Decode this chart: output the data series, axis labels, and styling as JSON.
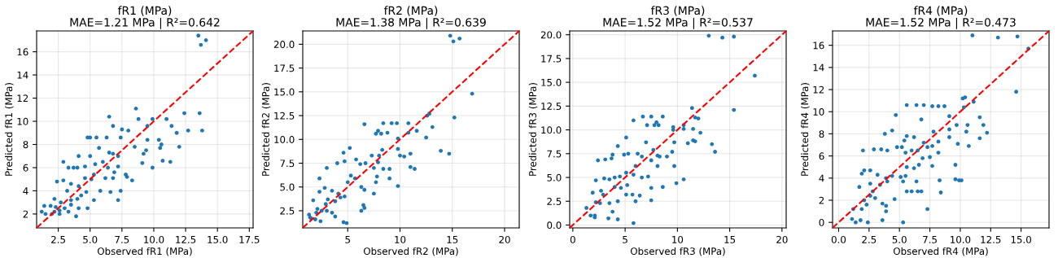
{
  "chart_data": [
    {
      "type": "scatter",
      "title": "fR1 (MPa)",
      "subtitle": "MAE=1.21 MPa | R²=0.642",
      "xlabel": "Observed fR1 (MPa)",
      "ylabel": "Predicted fR1 (MPa)",
      "grid": true,
      "xlim": [
        0.8,
        17.8
      ],
      "ylim": [
        0.8,
        17.8
      ],
      "xticks": [
        2.5,
        {
          "value": 5,
          "label": "5.0"
        },
        7.5,
        {
          "value": 10,
          "label": "10.0"
        },
        12.5,
        {
          "value": 15,
          "label": "15.0"
        },
        17.5
      ],
      "yticks": [
        2,
        4,
        6,
        8,
        10,
        12,
        14,
        16
      ],
      "series": [
        {
          "marker": "circle",
          "color": "#1f77b4",
          "x": [
            13.5,
            13.7,
            14.1,
            8.6,
            6.5,
            8.8,
            9.9,
            11.0,
            12.4,
            13.6,
            12.7,
            13.8,
            11.8,
            11.4,
            9.5,
            6.8,
            7.5,
            8.0,
            4.8,
            5.0,
            5.5,
            6.3,
            7.4,
            9.5,
            10.4,
            10.6,
            12.0,
            10.5,
            9.2,
            9.4,
            8.5,
            6.8,
            7.2,
            6.5,
            4.1,
            5.0,
            5.7,
            10.7,
            11.3,
            9.9,
            9.1,
            7.2,
            6.0,
            3.3,
            3.7,
            4.0,
            2.9,
            4.6,
            5.4,
            6.4,
            6.9,
            7.8,
            7.9,
            5.3,
            6.2,
            6.8,
            5.1,
            4.6,
            2.4,
            2.9,
            3.5,
            4.1,
            8.3,
            6.6,
            5.8,
            4.7,
            3.2,
            7.4,
            7.2,
            5.3,
            3.5,
            4.0,
            4.3,
            2.2,
            3.5,
            2.7,
            1.9,
            2.3,
            3.0,
            2.6,
            3.3,
            4.1,
            4.8,
            3.9,
            1.2,
            1.5,
            2.0,
            2.6,
            1.4,
            2.2
          ],
          "values": [
            17.4,
            16.6,
            17.0,
            11.1,
            10.4,
            10.2,
            10.2,
            10.2,
            10.7,
            10.7,
            9.2,
            9.2,
            9.0,
            9.6,
            9.6,
            9.6,
            9.3,
            9.2,
            8.6,
            8.6,
            8.6,
            8.6,
            8.6,
            8.4,
            8.4,
            8.0,
            7.8,
            7.7,
            7.2,
            7.5,
            7.8,
            7.2,
            7.0,
            7.3,
            7.0,
            7.0,
            7.7,
            6.6,
            6.5,
            6.0,
            6.4,
            6.1,
            6.5,
            6.0,
            6.0,
            6.0,
            6.5,
            6.1,
            6.3,
            6.0,
            5.6,
            5.4,
            5.2,
            5.4,
            5.1,
            5.1,
            5.0,
            5.1,
            4.8,
            4.9,
            4.6,
            4.4,
            4.9,
            3.9,
            4.0,
            3.9,
            4.0,
            4.0,
            3.2,
            3.2,
            3.2,
            3.3,
            3.6,
            3.3,
            2.8,
            3.0,
            2.7,
            2.6,
            2.5,
            2.3,
            2.2,
            2.5,
            2.5,
            1.8,
            2.2,
            2.0,
            2.0,
            2.0,
            2.7,
            2.2
          ]
        },
        {
          "type": "line",
          "line_style": "dashed",
          "color": "#ff0000",
          "x": [
            0.8,
            17.8
          ],
          "values": [
            0.8,
            17.8
          ]
        }
      ]
    },
    {
      "type": "scatter",
      "title": "fR2 (MPa)",
      "subtitle": "MAE=1.38 MPa | R²=0.639",
      "xlabel": "Observed fR2 (MPa)",
      "ylabel": "Predicted fR2 (MPa)",
      "grid": true,
      "xlim": [
        0.7,
        21.4
      ],
      "ylim": [
        0.7,
        21.4
      ],
      "xticks": [
        5,
        10,
        15,
        20
      ],
      "yticks": [
        2.5,
        {
          "value": 5,
          "label": "5.0"
        },
        7.5,
        {
          "value": 10,
          "label": "10.0"
        },
        12.5,
        {
          "value": 15,
          "label": "15.0"
        },
        17.5,
        {
          "value": 20,
          "label": "20.0"
        }
      ],
      "series": [
        {
          "marker": "circle",
          "color": "#1f77b4",
          "x": [
            14.8,
            15.1,
            15.7,
            16.9,
            15.2,
            12.6,
            12.8,
            13.9,
            14.7,
            13.1,
            12.5,
            11.6,
            10.8,
            10.8,
            9.7,
            9.2,
            8.4,
            6.6,
            7.7,
            7.9,
            8.2,
            8.8,
            9.8,
            11.4,
            11.0,
            11.0,
            10.4,
            10.0,
            9.8,
            8.3,
            8.0,
            7.3,
            7.9,
            7.5,
            8.4,
            9.0,
            9.0,
            7.8,
            7.5,
            9.8,
            7.7,
            6.6,
            6.7,
            6.2,
            5.8,
            5.2,
            4.6,
            4.0,
            3.0,
            4.7,
            5.3,
            5.7,
            5.0,
            6.3,
            6.5,
            6.3,
            6.6,
            4.6,
            4.9,
            2.3,
            2.3,
            3.1,
            2.8,
            3.5,
            4.1,
            3.8,
            4.3,
            4.7,
            3.5,
            3.8,
            3.0,
            2.5,
            2.0,
            2.4,
            1.7,
            1.3,
            1.5,
            1.9,
            2.1,
            2.9,
            1.4
          ],
          "values": [
            20.9,
            20.3,
            20.6,
            14.8,
            12.3,
            12.5,
            12.7,
            8.8,
            8.5,
            11.3,
            10.2,
            10.9,
            10.7,
            11.7,
            11.7,
            11.7,
            11.7,
            11.6,
            10.6,
            10.9,
            10.6,
            10.7,
            10.1,
            6.9,
            7.1,
            8.5,
            8.2,
            8.3,
            9.0,
            8.9,
            8.3,
            8.3,
            7.6,
            7.0,
            6.9,
            6.9,
            5.9,
            6.1,
            4.3,
            5.1,
            5.5,
            4.7,
            7.5,
            7.4,
            7.9,
            9.1,
            8.6,
            7.5,
            7.0,
            7.7,
            6.2,
            5.9,
            5.5,
            5.0,
            3.1,
            2.5,
            2.8,
            1.3,
            1.2,
            5.9,
            4.5,
            3.7,
            4.9,
            4.6,
            4.3,
            3.5,
            3.9,
            4.0,
            2.3,
            1.9,
            2.5,
            2.5,
            2.3,
            1.4,
            3.6,
            2.1,
            1.7,
            1.6,
            2.7,
            3.2,
            1.8
          ]
        },
        {
          "type": "line",
          "line_style": "dashed",
          "color": "#ff0000",
          "x": [
            0.7,
            21.4
          ],
          "values": [
            0.7,
            21.4
          ]
        }
      ]
    },
    {
      "type": "scatter",
      "title": "fR3 (MPa)",
      "subtitle": "MAE=1.52 MPa | R²=0.537",
      "xlabel": "Observed fR3 (MPa)",
      "ylabel": "Predicted fR3 (MPa)",
      "grid": true,
      "xlim": [
        -0.3,
        20.4
      ],
      "ylim": [
        -0.3,
        20.4
      ],
      "xticks": [
        0,
        5,
        10,
        15,
        20
      ],
      "yticks": [
        {
          "value": 0,
          "label": "0.0"
        },
        2.5,
        {
          "value": 5,
          "label": "5.0"
        },
        7.5,
        {
          "value": 10,
          "label": "10.0"
        },
        12.5,
        {
          "value": 15,
          "label": "15.0"
        },
        17.5,
        {
          "value": 20,
          "label": "20.0"
        }
      ],
      "series": [
        {
          "marker": "circle",
          "color": "#1f77b4",
          "x": [
            13.0,
            14.3,
            15.4,
            17.4,
            15.4,
            11.4,
            11.7,
            12.0,
            12.2,
            11.0,
            11.5,
            11.7,
            13.3,
            13.6,
            10.6,
            10.6,
            11.5,
            9.6,
            9.6,
            8.6,
            7.5,
            6.7,
            5.8,
            8.0,
            8.2,
            7.8,
            7.1,
            7.0,
            9.7,
            9.5,
            9.0,
            8.1,
            7.7,
            8.3,
            7.5,
            6.6,
            6.2,
            5.1,
            4.3,
            3.8,
            2.4,
            3.1,
            3.7,
            4.9,
            5.3,
            6.0,
            5.8,
            5.1,
            4.5,
            4.0,
            3.5,
            3.0,
            2.2,
            6.6,
            7.2,
            8.6,
            9.9,
            10.6,
            8.1,
            9.7,
            7.5,
            7.5,
            6.0,
            5.7,
            6.4,
            5.1,
            5.8,
            4.3,
            3.4,
            3.8,
            4.3,
            2.9,
            2.1,
            1.7,
            2.1,
            1.3,
            1.9,
            2.2,
            2.6,
            3.5,
            2.7,
            4.0,
            4.6,
            5.2
          ],
          "values": [
            19.9,
            19.7,
            19.8,
            15.7,
            12.1,
            12.3,
            11.3,
            11.2,
            9.7,
            8.6,
            8.9,
            8.8,
            8.5,
            7.7,
            10.5,
            10.1,
            10.1,
            10.0,
            10.3,
            11.4,
            11.4,
            11.4,
            11.0,
            10.8,
            10.5,
            10.5,
            10.5,
            8.7,
            8.7,
            7.7,
            7.2,
            7.3,
            7.9,
            7.2,
            6.8,
            7.2,
            7.5,
            9.2,
            8.3,
            7.4,
            6.8,
            6.9,
            7.0,
            7.4,
            7.5,
            6.2,
            5.3,
            5.5,
            5.1,
            5.0,
            4.8,
            4.9,
            4.7,
            5.0,
            5.1,
            4.0,
            4.4,
            4.8,
            6.2,
            6.2,
            3.9,
            2.6,
            2.5,
            3.2,
            3.1,
            3.2,
            0.2,
            0.6,
            0.7,
            1.4,
            2.5,
            3.2,
            1.0,
            1.0,
            0.8,
            1.8,
            3.4,
            2.4,
            2.3,
            2.3,
            3.6,
            4.0,
            3.9,
            4.2
          ]
        },
        {
          "type": "line",
          "line_style": "dashed",
          "color": "#ff0000",
          "x": [
            -0.3,
            20.4
          ],
          "values": [
            -0.3,
            20.4
          ]
        }
      ]
    },
    {
      "type": "scatter",
      "title": "fR4 (MPa)",
      "subtitle": "MAE=1.52 MPa | R²=0.473",
      "xlabel": "Observed fR4 (MPa)",
      "ylabel": "Predicted fR4 (MPa)",
      "grid": true,
      "xlim": [
        -0.5,
        17.3
      ],
      "ylim": [
        -0.5,
        17.3
      ],
      "xticks": [
        {
          "value": 0,
          "label": "0.0"
        },
        2.5,
        {
          "value": 5,
          "label": "5.0"
        },
        7.5,
        {
          "value": 10,
          "label": "10.0"
        },
        12.5,
        {
          "value": 15,
          "label": "15.0"
        }
      ],
      "yticks": [
        0,
        2,
        4,
        6,
        8,
        10,
        12,
        14,
        16
      ],
      "series": [
        {
          "marker": "circle",
          "color": "#1f77b4",
          "x": [
            11.0,
            13.1,
            14.7,
            15.6,
            14.6,
            10.2,
            10.4,
            11.1,
            10.3,
            11.6,
            11.9,
            12.2,
            11.6,
            10.7,
            10.5,
            10.6,
            9.7,
            9.1,
            9.1,
            9.1,
            9.8,
            9.6,
            9.6,
            9.9,
            10.1,
            8.4,
            8.3,
            7.3,
            7.7,
            8.2,
            8.7,
            7.0,
            6.4,
            5.6,
            6.8,
            4.7,
            4.4,
            3.8,
            5.4,
            5.6,
            6.2,
            7.8,
            8.2,
            7.7,
            7.0,
            7.3,
            7.5,
            8.2,
            6.5,
            6.0,
            5.5,
            4.8,
            5.2,
            6.9,
            6.6,
            6.2,
            5.6,
            5.1,
            5.5,
            5.3,
            6.4,
            6.0,
            5.6,
            6.5,
            6.8,
            7.7,
            4.6,
            5.3,
            4.4,
            4.0,
            3.9,
            3.2,
            4.0,
            3.5,
            2.9,
            2.0,
            2.1,
            2.6,
            1.7,
            1.9,
            2.6,
            3.4,
            3.6,
            3.9,
            3.9,
            3.6,
            2.4,
            1.8,
            1.4,
            1.1,
            1.2,
            1.9,
            2.3,
            2.6,
            2.8,
            2.1,
            3.0
          ],
          "values": [
            16.9,
            16.7,
            16.8,
            15.7,
            11.8,
            11.2,
            11.3,
            10.9,
            10.4,
            9.5,
            8.8,
            8.1,
            7.6,
            6.9,
            8.2,
            8.8,
            8.8,
            9.6,
            8.4,
            7.7,
            7.1,
            5.2,
            3.9,
            3.8,
            3.8,
            2.7,
            3.8,
            1.2,
            10.5,
            10.5,
            10.5,
            10.6,
            10.6,
            10.6,
            9.3,
            9.7,
            8.3,
            8.0,
            7.4,
            7.8,
            7.7,
            8.2,
            7.3,
            6.9,
            7.2,
            6.8,
            5.9,
            6.3,
            6.5,
            6.5,
            6.3,
            6.8,
            6.8,
            5.8,
            5.2,
            4.9,
            5.0,
            4.1,
            4.2,
            3.7,
            3.7,
            2.8,
            2.8,
            2.8,
            2.8,
            5.1,
            2.1,
            0.0,
            4.2,
            3.7,
            4.0,
            4.3,
            6.5,
            6.6,
            6.6,
            6.5,
            4.7,
            4.7,
            3.2,
            4.4,
            3.5,
            3.4,
            1.7,
            1.0,
            1.5,
            0.2,
            0.0,
            0.2,
            0.0,
            0.3,
            1.2,
            1.2,
            1.6,
            2.4,
            2.8,
            2.0,
            2.2
          ]
        },
        {
          "type": "line",
          "line_style": "dashed",
          "color": "#ff0000",
          "x": [
            -0.5,
            17.3
          ],
          "values": [
            -0.5,
            17.3
          ]
        }
      ]
    }
  ]
}
